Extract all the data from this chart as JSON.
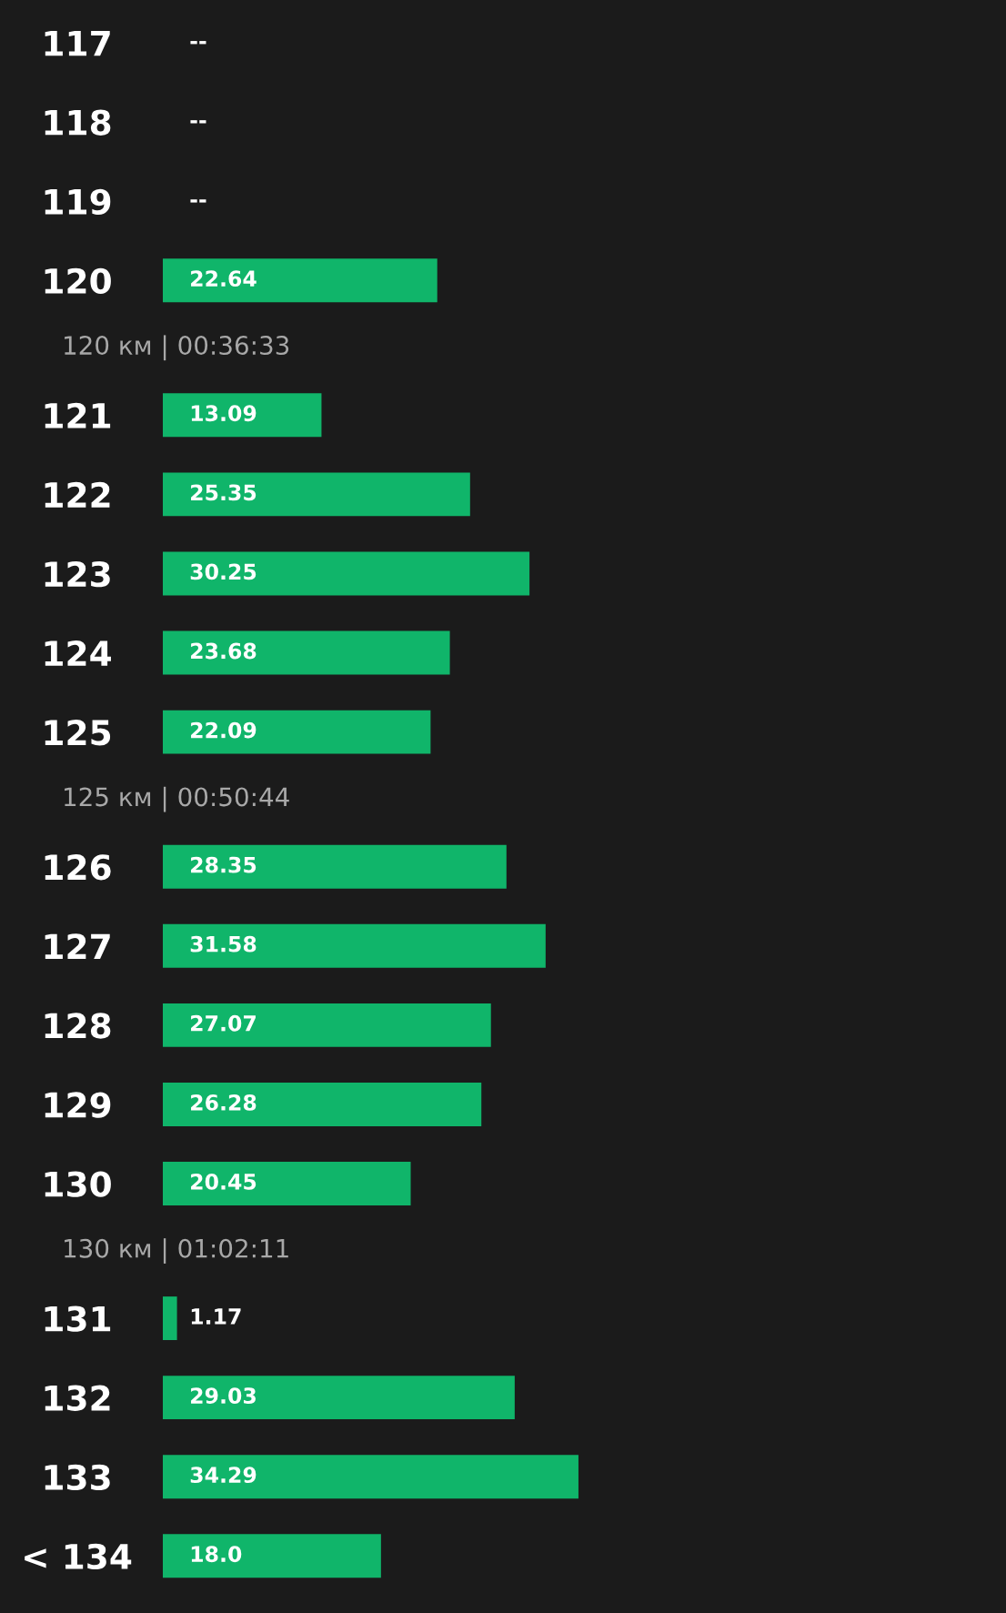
{
  "chart_data": {
    "type": "bar",
    "orientation": "horizontal",
    "categories": [
      "117",
      "118",
      "119",
      "120",
      "121",
      "122",
      "123",
      "124",
      "125",
      "126",
      "127",
      "128",
      "129",
      "130",
      "131",
      "132",
      "133",
      "< 134"
    ],
    "values": [
      null,
      null,
      null,
      22.64,
      13.09,
      25.35,
      30.25,
      23.68,
      22.09,
      28.35,
      31.58,
      27.07,
      26.28,
      20.45,
      1.17,
      29.03,
      34.29,
      18.0
    ],
    "value_labels": [
      "--",
      "--",
      "--",
      "22.64",
      "13.09",
      "25.35",
      "30.25",
      "23.68",
      "22.09",
      "28.35",
      "31.58",
      "27.07",
      "26.28",
      "20.45",
      "1.17",
      "29.03",
      "34.29",
      "18.0"
    ],
    "color": "#10b56a",
    "tick_labels": "y",
    "grid": false,
    "legend": false,
    "annotations": [
      {
        "text": "120 км | 00:36:33",
        "y": "120"
      },
      {
        "text": "125 км | 00:50:44",
        "y": "125"
      },
      {
        "text": "130 км | 01:02:11",
        "y": "130"
      }
    ]
  }
}
